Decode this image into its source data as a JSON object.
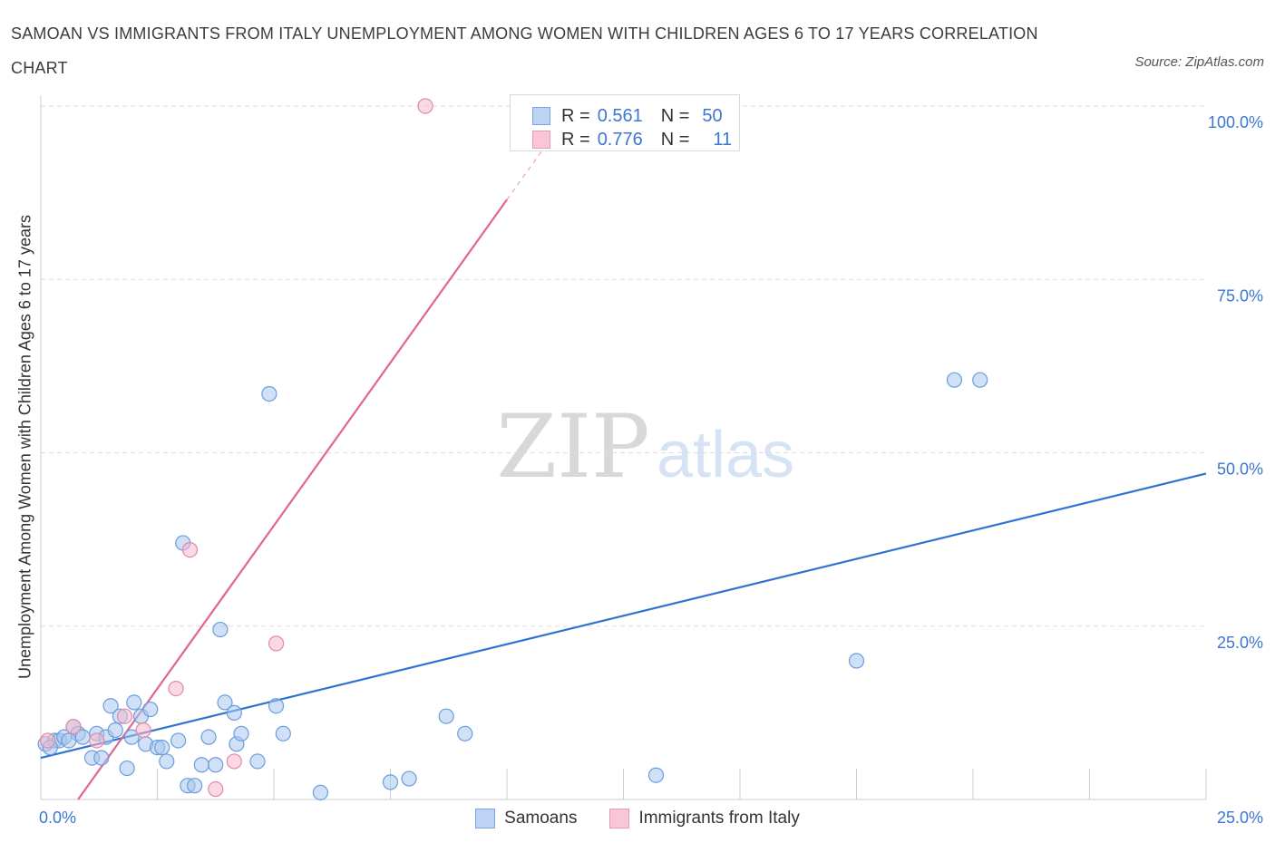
{
  "title": "SAMOAN VS IMMIGRANTS FROM ITALY UNEMPLOYMENT AMONG WOMEN WITH CHILDREN AGES 6 TO 17 YEARS CORRELATION CHART",
  "source": "Source: ZipAtlas.com",
  "watermark": {
    "zip": "ZIP",
    "atlas": "atlas"
  },
  "legend": {
    "rows": [
      {
        "r_label": "R =",
        "r_value": "0.561",
        "n_label": "N =",
        "n_value": "50"
      },
      {
        "r_label": "R =",
        "r_value": "0.776",
        "n_label": "N =",
        "n_value": "11"
      }
    ]
  },
  "colors": {
    "samoans_fill": "#a9c7f0",
    "samoans_stroke": "#6a9ddc",
    "samoans_line": "#2f72d0",
    "italy_fill": "#f6b9cc",
    "italy_stroke": "#e08aa6",
    "italy_line": "#e06592",
    "axis_text": "#3b76d2",
    "grid": "#dddddd"
  },
  "chart_data": {
    "type": "scatter",
    "title": "SAMOAN VS IMMIGRANTS FROM ITALY UNEMPLOYMENT AMONG WOMEN WITH CHILDREN AGES 6 TO 17 YEARS CORRELATION CHART",
    "xlabel": "",
    "ylabel": "Unemployment Among Women with Children Ages 6 to 17 years",
    "xlim": [
      0,
      25
    ],
    "ylim": [
      0,
      100
    ],
    "x_tick_labels": [
      "0.0%",
      "25.0%"
    ],
    "y_tick_labels": [
      "100.0%",
      "75.0%",
      "50.0%",
      "25.0%"
    ],
    "y_tick_values": [
      100,
      75,
      50,
      25
    ],
    "grid": true,
    "legend_position": "top-center",
    "series": [
      {
        "name": "Samoans",
        "r": 0.561,
        "n": 50,
        "trend": {
          "x": [
            0,
            25
          ],
          "y": [
            6.0,
            47.0
          ]
        },
        "points": [
          {
            "x": 0.1,
            "y": 8.0
          },
          {
            "x": 0.3,
            "y": 8.5
          },
          {
            "x": 0.4,
            "y": 8.5
          },
          {
            "x": 0.5,
            "y": 9.0
          },
          {
            "x": 0.7,
            "y": 10.5
          },
          {
            "x": 0.8,
            "y": 9.5
          },
          {
            "x": 0.9,
            "y": 9.0
          },
          {
            "x": 1.1,
            "y": 6.0
          },
          {
            "x": 1.2,
            "y": 9.5
          },
          {
            "x": 1.3,
            "y": 6.0
          },
          {
            "x": 1.4,
            "y": 9.0
          },
          {
            "x": 1.5,
            "y": 13.5
          },
          {
            "x": 1.6,
            "y": 10.0
          },
          {
            "x": 1.7,
            "y": 12.0
          },
          {
            "x": 1.85,
            "y": 4.5
          },
          {
            "x": 1.95,
            "y": 9.0
          },
          {
            "x": 2.0,
            "y": 14.0
          },
          {
            "x": 2.15,
            "y": 12.0
          },
          {
            "x": 2.25,
            "y": 8.0
          },
          {
            "x": 2.35,
            "y": 13.0
          },
          {
            "x": 2.5,
            "y": 7.5
          },
          {
            "x": 2.6,
            "y": 7.5
          },
          {
            "x": 2.7,
            "y": 5.5
          },
          {
            "x": 2.95,
            "y": 8.5
          },
          {
            "x": 3.05,
            "y": 37.0
          },
          {
            "x": 3.15,
            "y": 2.0
          },
          {
            "x": 3.3,
            "y": 2.0
          },
          {
            "x": 3.45,
            "y": 5.0
          },
          {
            "x": 3.6,
            "y": 9.0
          },
          {
            "x": 3.75,
            "y": 5.0
          },
          {
            "x": 3.85,
            "y": 24.5
          },
          {
            "x": 3.95,
            "y": 14.0
          },
          {
            "x": 4.15,
            "y": 12.5
          },
          {
            "x": 4.2,
            "y": 8.0
          },
          {
            "x": 4.3,
            "y": 9.5
          },
          {
            "x": 4.65,
            "y": 5.5
          },
          {
            "x": 4.9,
            "y": 58.5
          },
          {
            "x": 5.05,
            "y": 13.5
          },
          {
            "x": 5.2,
            "y": 9.5
          },
          {
            "x": 6.0,
            "y": 1.0
          },
          {
            "x": 7.5,
            "y": 2.5
          },
          {
            "x": 7.9,
            "y": 3.0
          },
          {
            "x": 8.7,
            "y": 12.0
          },
          {
            "x": 9.1,
            "y": 9.5
          },
          {
            "x": 13.2,
            "y": 3.5
          },
          {
            "x": 17.5,
            "y": 20.0
          },
          {
            "x": 19.6,
            "y": 60.5
          },
          {
            "x": 20.15,
            "y": 60.5
          },
          {
            "x": 0.2,
            "y": 7.5
          },
          {
            "x": 0.6,
            "y": 8.5
          }
        ]
      },
      {
        "name": "Immigrants from Italy",
        "r": 0.776,
        "n": 11,
        "trend": {
          "x": [
            0.8,
            10.0
          ],
          "y": [
            0,
            86.5
          ]
        },
        "trend_dashed": {
          "x": [
            10.0,
            10.8
          ],
          "y": [
            86.5,
            94.0
          ]
        },
        "points": [
          {
            "x": 0.15,
            "y": 8.5
          },
          {
            "x": 0.7,
            "y": 10.5
          },
          {
            "x": 1.2,
            "y": 8.5
          },
          {
            "x": 1.8,
            "y": 12.0
          },
          {
            "x": 2.2,
            "y": 10.0
          },
          {
            "x": 2.9,
            "y": 16.0
          },
          {
            "x": 3.2,
            "y": 36.0
          },
          {
            "x": 3.75,
            "y": 1.5
          },
          {
            "x": 4.15,
            "y": 5.5
          },
          {
            "x": 5.05,
            "y": 22.5
          },
          {
            "x": 8.25,
            "y": 100.0
          }
        ]
      }
    ]
  }
}
